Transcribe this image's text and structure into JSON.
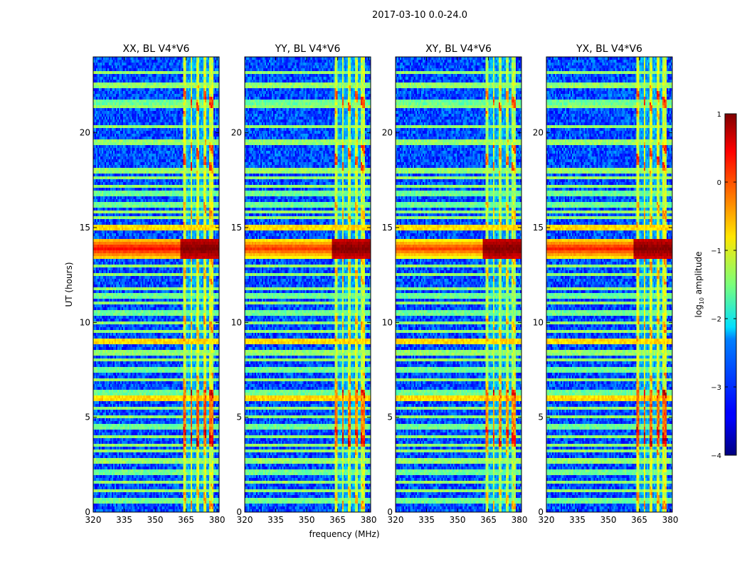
{
  "chart_data": {
    "type": "heatmap",
    "suptitle": "2017-03-10 0.0-24.0",
    "xlabel": "frequency (MHz)",
    "ylabel": "UT (hours)",
    "xlim": [
      320,
      381
    ],
    "ylim": [
      0,
      24
    ],
    "xticks": [
      320,
      335,
      350,
      365,
      380
    ],
    "yticks": [
      0,
      5,
      10,
      15,
      20
    ],
    "panels": [
      {
        "title": "XX, BL V4*V6",
        "burst_amp": 1.0,
        "band_amp": 0.1,
        "burst_span_mhz": [
          320,
          381
        ]
      },
      {
        "title": "YY, BL V4*V6",
        "burst_amp": 0.6,
        "band_amp": 0.0,
        "burst_span_mhz": [
          320,
          381
        ]
      },
      {
        "title": "XY, BL V4*V6",
        "burst_amp": 0.5,
        "band_amp": -0.1,
        "burst_span_mhz": [
          320,
          381
        ]
      },
      {
        "title": "YX, BL V4*V6",
        "burst_amp": 0.8,
        "band_amp": 0.1,
        "burst_span_mhz": [
          320,
          381
        ]
      }
    ],
    "colorbar": {
      "label": "log10 amplitude",
      "label_main": "log",
      "label_sub": "10",
      "label_rest": " amplitude",
      "range": [
        -4,
        1
      ],
      "ticks": [
        1,
        0,
        -1,
        -2,
        -3,
        -4
      ],
      "tick_labels": [
        "1",
        "0",
        "−1",
        "−2",
        "−3",
        "−4"
      ]
    },
    "features": {
      "background_log_amp": -3.0,
      "rfi_band_mhz": [
        [
          363.5,
          365.0
        ],
        [
          367.0,
          368.0
        ],
        [
          370.0,
          371.5
        ],
        [
          373.5,
          374.5
        ],
        [
          376.0,
          378.0
        ]
      ],
      "rfi_band_log_amp": -1.2,
      "burst_ut_hours": [
        13.4,
        14.4
      ],
      "active_ut_hours": [
        3.5,
        6.5
      ],
      "rfi_ut_lines_hours": [
        0.6,
        1.1,
        1.6,
        2.1,
        2.6,
        2.8,
        3.2,
        3.5,
        4.0,
        4.5,
        5.0,
        5.5,
        6.0,
        6.3,
        7.0,
        7.5,
        8.0,
        8.3,
        8.5,
        9.0,
        9.5,
        10.0,
        10.5,
        11.0,
        11.4,
        11.8,
        12.5,
        13.0,
        15.0,
        15.5,
        15.8,
        16.2,
        16.8,
        17.2,
        17.6,
        17.9,
        18.1,
        19.4,
        19.6,
        20.3,
        21.4,
        21.6,
        22.4,
        22.6,
        23.2
      ]
    }
  }
}
